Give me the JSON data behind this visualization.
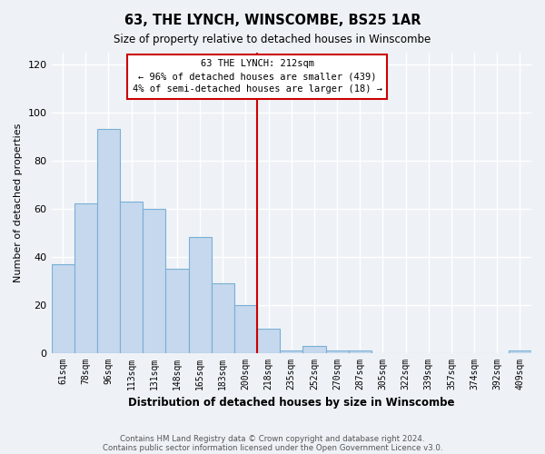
{
  "title": "63, THE LYNCH, WINSCOMBE, BS25 1AR",
  "subtitle": "Size of property relative to detached houses in Winscombe",
  "xlabel": "Distribution of detached houses by size in Winscombe",
  "ylabel": "Number of detached properties",
  "bar_labels": [
    "61sqm",
    "78sqm",
    "96sqm",
    "113sqm",
    "131sqm",
    "148sqm",
    "165sqm",
    "183sqm",
    "200sqm",
    "218sqm",
    "235sqm",
    "252sqm",
    "270sqm",
    "287sqm",
    "305sqm",
    "322sqm",
    "339sqm",
    "357sqm",
    "374sqm",
    "392sqm",
    "409sqm"
  ],
  "bar_values": [
    37,
    62,
    93,
    63,
    60,
    35,
    48,
    29,
    20,
    10,
    1,
    3,
    1,
    1,
    0,
    0,
    0,
    0,
    0,
    0,
    1
  ],
  "bar_color": "#c5d8ed",
  "bar_edge_color": "#7aafd4",
  "vline_x_index": 9,
  "vline_color": "#cc0000",
  "annotation_title": "63 THE LYNCH: 212sqm",
  "annotation_line1": "← 96% of detached houses are smaller (439)",
  "annotation_line2": "4% of semi-detached houses are larger (18) →",
  "annotation_box_color": "#ffffff",
  "annotation_box_edge_color": "#cc0000",
  "ylim": [
    0,
    125
  ],
  "yticks": [
    0,
    20,
    40,
    60,
    80,
    100,
    120
  ],
  "footer1": "Contains HM Land Registry data © Crown copyright and database right 2024.",
  "footer2": "Contains public sector information licensed under the Open Government Licence v3.0.",
  "bg_color": "#eef2f7",
  "grid_color": "#ffffff"
}
